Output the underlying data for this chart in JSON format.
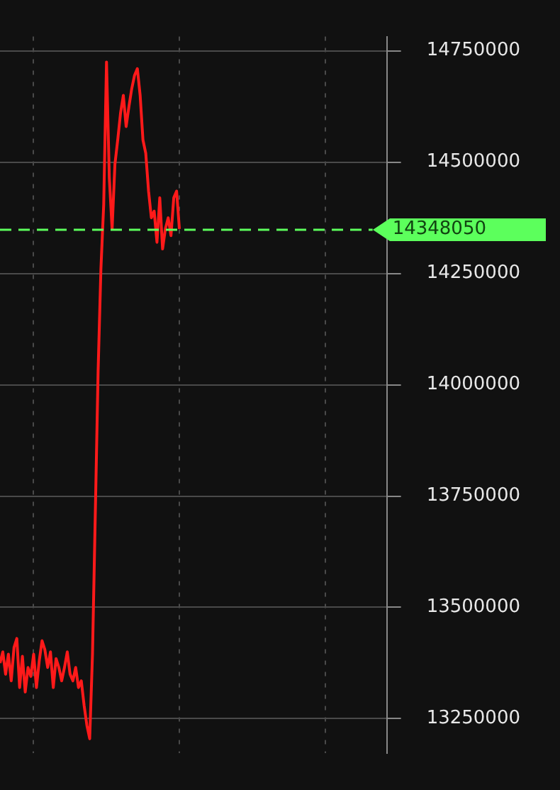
{
  "chart_data": {
    "type": "line",
    "categories": [
      null,
      null,
      null,
      null,
      null,
      null,
      null,
      null,
      null,
      null,
      null,
      null,
      null,
      null,
      null,
      null,
      null,
      null,
      null,
      null,
      null,
      null,
      null,
      null,
      null,
      null,
      null,
      null,
      null,
      null,
      null,
      null,
      null,
      null,
      null,
      null,
      null,
      null,
      null,
      null,
      null,
      null,
      null,
      null,
      null,
      null,
      null,
      null,
      null,
      null,
      null,
      null,
      null,
      null,
      null,
      null,
      null,
      null,
      null,
      null,
      null,
      null,
      null,
      null,
      null,
      null,
      null,
      null,
      null,
      null,
      null,
      null,
      null,
      null,
      null,
      null,
      null,
      null,
      null,
      null,
      null,
      null,
      null,
      null,
      null,
      null,
      null,
      null,
      null,
      null,
      null,
      null,
      null,
      null,
      null,
      null,
      null,
      null,
      null,
      null,
      null,
      null,
      null,
      null,
      null,
      null,
      null,
      null,
      null,
      null,
      null,
      null,
      null,
      null,
      null,
      null,
      null,
      null,
      null,
      null,
      null,
      null,
      null,
      null,
      null,
      null,
      null,
      null,
      null,
      null,
      null,
      null,
      null,
      null,
      null,
      null,
      null,
      null,
      null
    ],
    "series": [
      {
        "color": "#ff1a1a",
        "values": [
          13375000,
          13400000,
          13350000,
          13395000,
          13335000,
          13410000,
          13430000,
          13320000,
          13390000,
          13310000,
          13365000,
          13345000,
          13395000,
          13320000,
          13380000,
          13425000,
          13405000,
          13365000,
          13400000,
          13320000,
          13385000,
          13365000,
          13335000,
          13365000,
          13400000,
          13350000,
          13335000,
          13365000,
          13320000,
          13335000,
          13280000,
          13235000,
          13205000,
          13395000,
          13710000,
          14030000,
          14260000,
          14405000,
          14725000,
          14465000,
          14350000,
          14495000,
          14550000,
          14610000,
          14650000,
          14580000,
          14625000,
          14665000,
          14695000,
          14710000,
          14650000,
          14550000,
          14520000,
          14435000,
          14375000,
          14390000,
          14320000,
          14420000,
          14305000,
          14350000,
          14375000,
          14335000,
          14420000,
          14435000,
          14350000,
          null,
          null,
          null,
          null,
          null,
          null,
          null,
          null,
          null,
          null,
          null,
          null,
          null,
          null,
          null,
          null,
          null,
          null,
          null,
          null,
          null,
          null,
          null,
          null,
          null,
          null,
          null,
          null,
          null,
          null,
          null,
          null,
          null,
          null,
          null,
          null,
          null,
          null,
          null,
          null,
          null,
          null,
          null,
          null,
          null,
          null,
          null,
          null,
          null,
          null,
          null,
          null,
          null,
          null,
          null,
          null,
          null,
          null,
          null,
          null,
          null,
          null,
          null,
          null,
          null,
          null,
          null,
          null,
          null,
          null,
          null,
          null,
          null,
          null
        ]
      }
    ],
    "ylim": [
      13172000,
      14782000
    ],
    "yticks": [
      13250000,
      13500000,
      13750000,
      14000000,
      14250000,
      14500000,
      14750000
    ],
    "tick_labels": "y",
    "grid": true,
    "marker": "none",
    "line_style": "solid",
    "ref_lines": [
      {
        "axis": "y",
        "value": 14348050,
        "label": "14348050",
        "color": "#5cff5c",
        "line_style": "dashed"
      }
    ]
  }
}
